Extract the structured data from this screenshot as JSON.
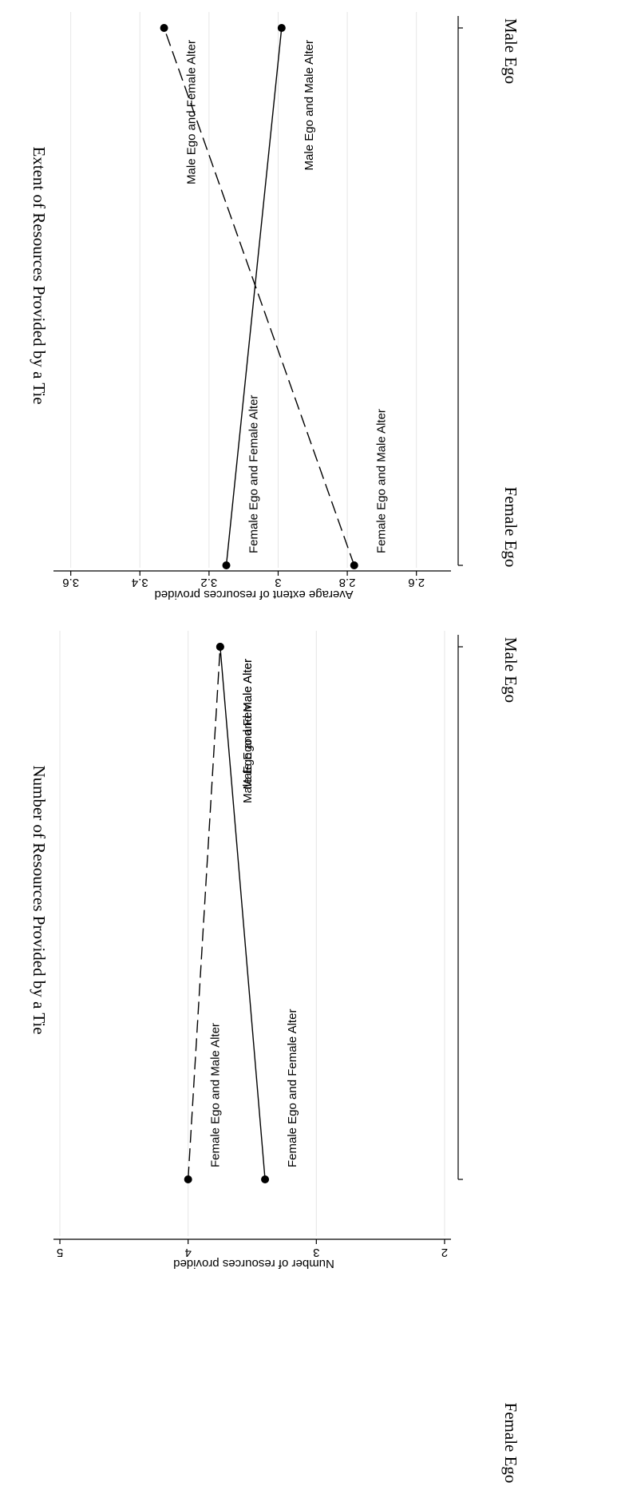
{
  "chart_data": [
    {
      "type": "line",
      "title": "Extent of Resources Provided by a Tie",
      "xlabel": "",
      "ylabel": "Average extent of resources provided",
      "categories": [
        "Female Ego",
        "Male Ego"
      ],
      "yticks": [
        "2.6",
        "2.8",
        "3",
        "3.2",
        "3.4",
        "3.6"
      ],
      "ylim": [
        2.5,
        3.65
      ],
      "grid": true,
      "series": [
        {
          "style": "solid",
          "values": [
            3.15,
            2.99
          ],
          "labels": [
            "Female Ego and Female Alter",
            "Male Ego and Male Alter"
          ]
        },
        {
          "style": "dashed",
          "values": [
            2.78,
            3.33
          ],
          "labels": [
            "Female Ego and Male Alter",
            "Male Ego and Female Alter"
          ]
        }
      ]
    },
    {
      "type": "line",
      "title": "Number of Resources Provided by a Tie",
      "xlabel": "",
      "ylabel": "Number of resources provided",
      "categories": [
        "Female Ego",
        "Male Ego"
      ],
      "yticks": [
        "2",
        "3",
        "4",
        "5"
      ],
      "ylim": [
        1.95,
        5.05
      ],
      "grid": true,
      "series": [
        {
          "style": "solid",
          "values": [
            3.4,
            3.75
          ],
          "labels": [
            "Female Ego and Female Alter",
            "Male Ego and Male Alter"
          ]
        },
        {
          "style": "dashed",
          "values": [
            4.0,
            3.75
          ],
          "labels": [
            "Female Ego and Male Alter",
            "Male Ego and Female Alter"
          ]
        }
      ]
    }
  ]
}
